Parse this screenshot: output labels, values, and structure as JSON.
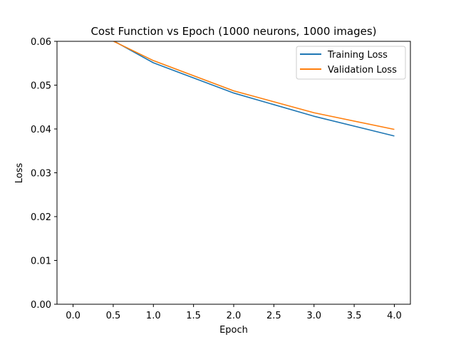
{
  "chart_data": {
    "type": "line",
    "title": "Cost Function vs Epoch (1000 neurons, 1000 images)",
    "xlabel": "Epoch",
    "ylabel": "Loss",
    "xlim": [
      -0.2,
      4.2
    ],
    "ylim": [
      0.0,
      0.06
    ],
    "x_ticks": [
      0.0,
      0.5,
      1.0,
      1.5,
      2.0,
      2.5,
      3.0,
      3.5,
      4.0
    ],
    "x_tick_labels": [
      "0.0",
      "0.5",
      "1.0",
      "1.5",
      "2.0",
      "2.5",
      "3.0",
      "3.5",
      "4.0"
    ],
    "y_ticks": [
      0.0,
      0.01,
      0.02,
      0.03,
      0.04,
      0.05,
      0.06
    ],
    "y_tick_labels": [
      "0.00",
      "0.01",
      "0.02",
      "0.03",
      "0.04",
      "0.05",
      "0.06"
    ],
    "grid": false,
    "legend_position": "top-right",
    "x": [
      0,
      1,
      2,
      3,
      4
    ],
    "series": [
      {
        "name": "Training Loss",
        "color": "#1f77b4",
        "values": [
          0.0652,
          0.0551,
          0.0482,
          0.0429,
          0.0384
        ]
      },
      {
        "name": "Validation Loss",
        "color": "#ff7f0e",
        "values": [
          0.0645,
          0.0556,
          0.0487,
          0.0437,
          0.0399
        ]
      }
    ]
  }
}
